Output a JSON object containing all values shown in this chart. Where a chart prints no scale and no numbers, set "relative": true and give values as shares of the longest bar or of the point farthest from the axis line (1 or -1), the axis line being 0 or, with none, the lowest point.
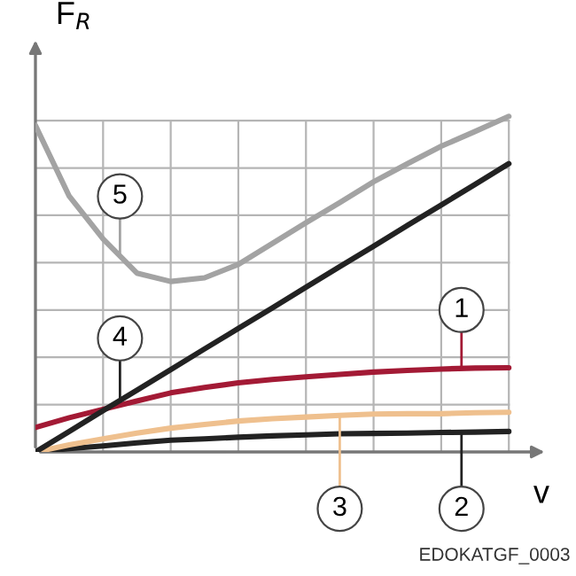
{
  "chart_data": {
    "type": "line",
    "relative": true,
    "xlabel": "v",
    "ylabel": "F$_{R}$",
    "grid": true,
    "legend": false,
    "categories": [
      null,
      null,
      null,
      null,
      null,
      null,
      null,
      null,
      null,
      null,
      null,
      null,
      null,
      null,
      null
    ],
    "series": [
      {
        "name": "1",
        "color": "#a31a35",
        "values": [
          0.073,
          0.102,
          0.127,
          0.152,
          0.176,
          0.192,
          0.206,
          0.216,
          0.224,
          0.231,
          0.238,
          0.243,
          0.247,
          0.25,
          0.251
        ]
      },
      {
        "name": "2",
        "color": "#222222",
        "values": [
          0,
          0.01,
          0.018,
          0.027,
          0.035,
          0.039,
          0.044,
          0.048,
          0.051,
          0.054,
          0.055,
          0.056,
          0.058,
          0.059,
          0.061
        ]
      },
      {
        "name": "3",
        "color": "#efc08e",
        "values": [
          0,
          0.021,
          0.039,
          0.056,
          0.071,
          0.082,
          0.092,
          0.099,
          0.104,
          0.109,
          0.113,
          0.114,
          0.114,
          0.117,
          0.118
        ]
      },
      {
        "name": "4",
        "color": "#222222",
        "values": [
          0,
          0.061,
          0.123,
          0.184,
          0.245,
          0.307,
          0.368,
          0.429,
          0.491,
          0.552,
          0.613,
          0.675,
          0.736,
          0.797,
          0.859
        ]
      },
      {
        "name": "5",
        "color": "#a3a3a3",
        "values": [
          0.973,
          0.762,
          0.635,
          0.533,
          0.508,
          0.519,
          0.559,
          0.621,
          0.683,
          0.743,
          0.805,
          0.859,
          0.911,
          0.955,
          1.0
        ]
      }
    ],
    "annotations": [
      "EDOKATGF_0003"
    ]
  }
}
